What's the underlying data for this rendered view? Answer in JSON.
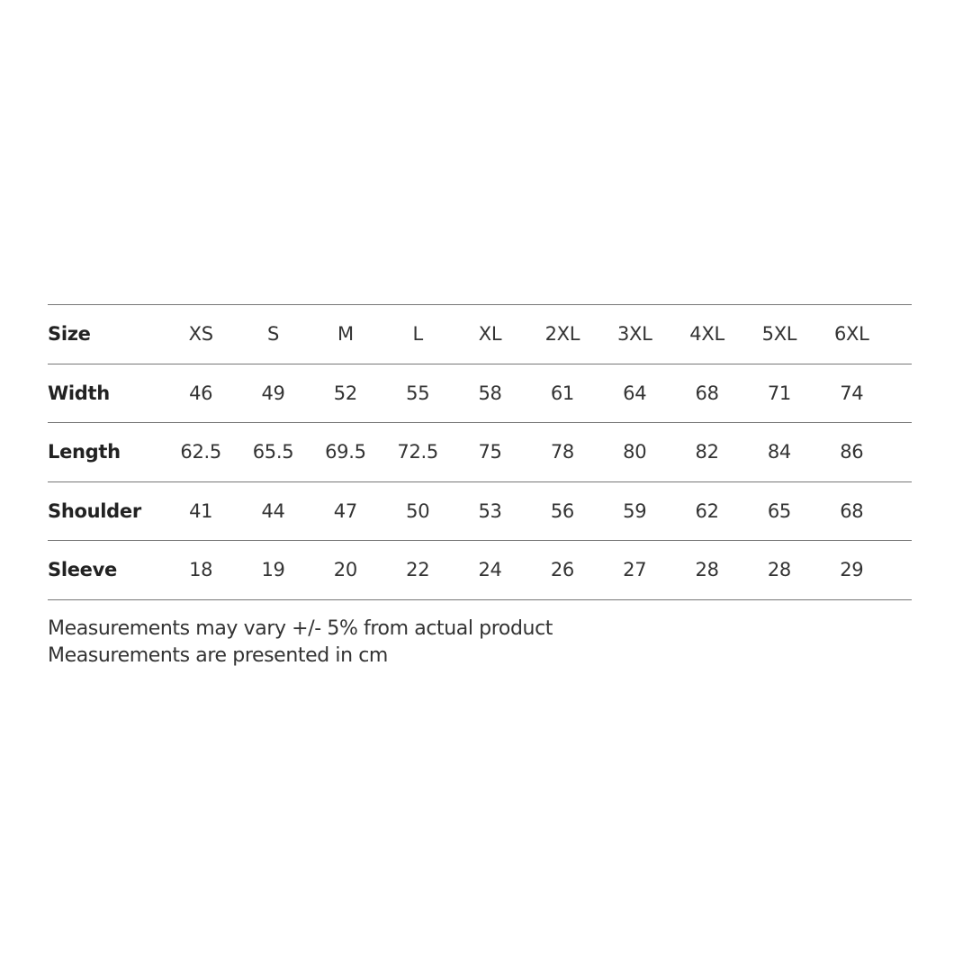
{
  "table": {
    "header": {
      "label": "Size",
      "values": [
        "XS",
        "S",
        "M",
        "L",
        "XL",
        "2XL",
        "3XL",
        "4XL",
        "5XL",
        "6XL"
      ]
    },
    "rows": [
      {
        "label": "Width",
        "values": [
          "46",
          "49",
          "52",
          "55",
          "58",
          "61",
          "64",
          "68",
          "71",
          "74"
        ]
      },
      {
        "label": "Length",
        "values": [
          "62.5",
          "65.5",
          "69.5",
          "72.5",
          "75",
          "78",
          "80",
          "82",
          "84",
          "86"
        ]
      },
      {
        "label": "Shoulder",
        "values": [
          "41",
          "44",
          "47",
          "50",
          "53",
          "56",
          "59",
          "62",
          "65",
          "68"
        ]
      },
      {
        "label": "Sleeve",
        "values": [
          "18",
          "19",
          "20",
          "22",
          "24",
          "26",
          "27",
          "28",
          "28",
          "29"
        ]
      }
    ]
  },
  "notes": [
    "Measurements may vary +/- 5% from actual product",
    "Measurements are presented in cm"
  ]
}
